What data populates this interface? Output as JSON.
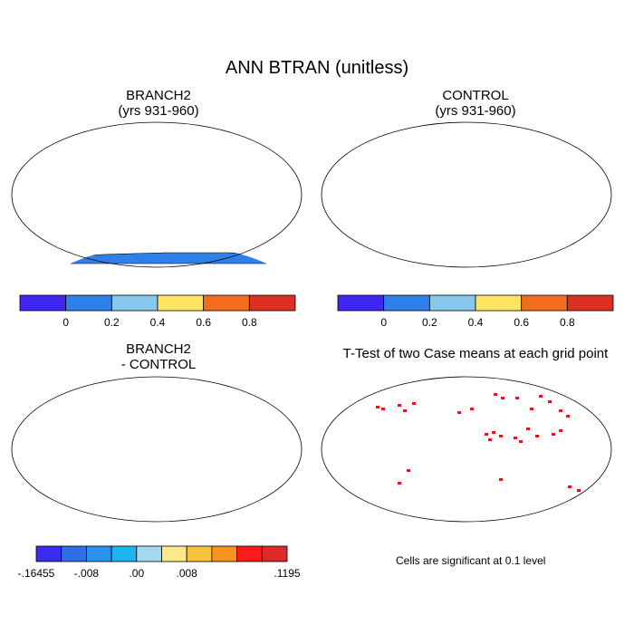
{
  "main_title": "ANN BTRAN (unitless)",
  "note": "Cells are significant at 0.1 level",
  "colors": {
    "ocean": "#ffffff",
    "coast": "#000000",
    "red": "#dc3025",
    "orange": "#f46d1f",
    "yellow": "#fbe461",
    "lightblue": "#88c8ec",
    "blue": "#2f80e8",
    "violet": "#4026f3",
    "ttest": "#ee1111",
    "diff_pale": "#fbe88a"
  },
  "chart_data": [
    {
      "type": "heatmap",
      "title": "BRANCH2",
      "subtitle": "(yrs 931-960)",
      "colorbar": {
        "colors": [
          "#4026f3",
          "#2f80e8",
          "#88c8ec",
          "#fbe461",
          "#f46d1f",
          "#dc3025"
        ],
        "tick_labels": [
          "0",
          "0.2",
          "0.4",
          "0.6",
          "0.8"
        ]
      }
    },
    {
      "type": "heatmap",
      "title": "CONTROL",
      "subtitle": "(yrs 931-960)",
      "colorbar": {
        "colors": [
          "#4026f3",
          "#2f80e8",
          "#88c8ec",
          "#fbe461",
          "#f46d1f",
          "#dc3025"
        ],
        "tick_labels": [
          "0",
          "0.2",
          "0.4",
          "0.6",
          "0.8"
        ]
      }
    },
    {
      "type": "heatmap",
      "title": "BRANCH2",
      "subtitle": "- CONTROL",
      "colorbar": {
        "colors": [
          "#3a2cf0",
          "#2f6ee6",
          "#2a92ee",
          "#1fb4f2",
          "#a4d8f0",
          "#fbe88a",
          "#f8c23a",
          "#f5941f",
          "#ff1a1a",
          "#dd2a2a"
        ],
        "tick_labels": [
          "-.16455",
          "-.008",
          ".00",
          ".008",
          ".1195"
        ]
      }
    },
    {
      "type": "heatmap",
      "title": "T-Test of two Case means at each grid point",
      "subtitle": ""
    }
  ]
}
